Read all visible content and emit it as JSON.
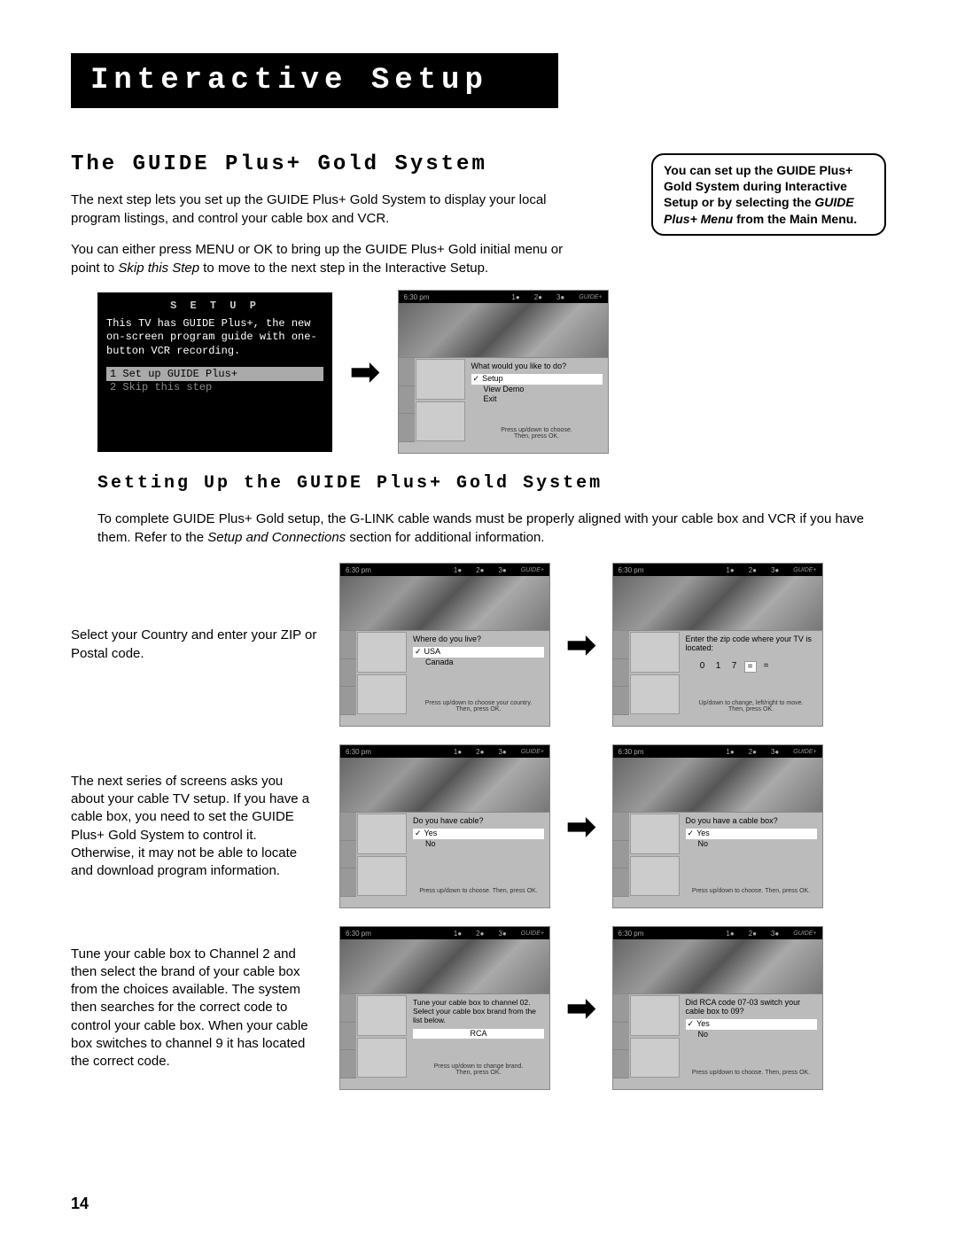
{
  "header": "Interactive Setup",
  "heading": "The GUIDE Plus+ Gold System",
  "intro1": "The next step lets you set up the GUIDE Plus+ Gold System to display your local program listings, and control your cable box and VCR.",
  "intro2a": "You can either press MENU or OK to bring up the GUIDE Plus+ Gold initial menu or point to ",
  "intro2i": "Skip this Step",
  "intro2b": " to move to the next step in the Interactive Setup.",
  "callout_a": "You can set up the GUIDE Plus+ Gold System during Interactive Setup or by selecting the ",
  "callout_i": "GUIDE Plus+ Menu",
  "callout_b": " from the Main Menu.",
  "setup_menu": {
    "title": "S E T U P",
    "desc": "This TV has GUIDE Plus+, the new on-screen program guide with one-button VCR recording.",
    "item1": "1 Set up GUIDE Plus+",
    "item2": "2 Skip this step"
  },
  "tv": {
    "time": "6:30 pm",
    "ch1": "1●",
    "ch2": "2●",
    "ch3": "3●"
  },
  "screen1": {
    "prompt": "What would you like to do?",
    "opt1": "Setup",
    "opt2": "View Demo",
    "opt3": "Exit",
    "footer": "Press up/down to choose.\nThen, press OK."
  },
  "subheading": "Setting Up the GUIDE Plus+ Gold System",
  "subintro_a": "To complete GUIDE Plus+ Gold setup, the G-LINK cable wands must be properly aligned with your cable box and VCR if you have them. Refer to the ",
  "subintro_i": "Setup and Connections",
  "subintro_b": " section for additional information.",
  "step1": {
    "text": "Select your Country and enter your ZIP or Postal code.",
    "s1_prompt": "Where do you live?",
    "s1_opt1": "USA",
    "s1_opt2": "Canada",
    "s1_footer": "Press up/down to choose your country.\nThen, press OK.",
    "s2_prompt": "Enter the zip code where your TV is located:",
    "s2_zip": [
      "0",
      "1",
      "7",
      "=",
      "="
    ],
    "s2_footer": "Up/down to change, left/right to move.\nThen, press OK."
  },
  "step2": {
    "text": "The next series of screens asks you about your cable TV setup. If you have a cable box, you need to set the GUIDE Plus+ Gold System to control it. Otherwise, it may not be able to locate and download program information.",
    "s1_prompt": "Do you have cable?",
    "opt1": "Yes",
    "opt2": "No",
    "s2_prompt": "Do you have a cable box?",
    "footer": "Press up/down to choose. Then, press OK."
  },
  "step3": {
    "text": "Tune your cable box to Channel 2 and then select the brand of your cable box from the choices available. The system then searches for the correct code to control your cable box. When your cable box switches to channel 9 it has located the correct code.",
    "s1_prompt": "Tune your cable box to channel 02. Select your cable box brand from the list below.",
    "s1_opt": "RCA",
    "s1_footer": "Press up/down to change brand.\nThen, press OK.",
    "s2_prompt": "Did RCA code 07-03 switch your cable box to 09?",
    "s2_footer": "Press up/down to choose. Then, press OK."
  },
  "page_number": "14"
}
